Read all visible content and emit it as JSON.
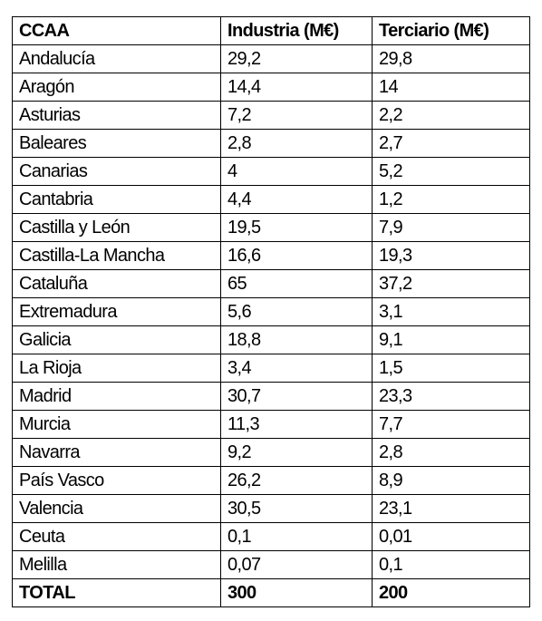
{
  "table": {
    "header": [
      "CCAA",
      "Industria (M€)",
      "Terciario (M€)"
    ],
    "rows": [
      [
        "Andalucía",
        "29,2",
        "29,8"
      ],
      [
        "Aragón",
        "14,4",
        "14"
      ],
      [
        "Asturias",
        "7,2",
        "2,2"
      ],
      [
        "Baleares",
        "2,8",
        "2,7"
      ],
      [
        "Canarias",
        "4",
        "5,2"
      ],
      [
        "Cantabria",
        "4,4",
        "1,2"
      ],
      [
        "Castilla y León",
        "19,5",
        "7,9"
      ],
      [
        "Castilla-La Mancha",
        "16,6",
        "19,3"
      ],
      [
        "Cataluña",
        "65",
        "37,2"
      ],
      [
        "Extremadura",
        "5,6",
        "3,1"
      ],
      [
        "Galicia",
        "18,8",
        "9,1"
      ],
      [
        "La Rioja",
        "3,4",
        "1,5"
      ],
      [
        "Madrid",
        "30,7",
        "23,3"
      ],
      [
        "Murcia",
        "11,3",
        "7,7"
      ],
      [
        "Navarra",
        "9,2",
        "2,8"
      ],
      [
        "País Vasco",
        "26,2",
        "8,9"
      ],
      [
        "Valencia",
        "30,5",
        "23,1"
      ],
      [
        "Ceuta",
        "0,1",
        "0,01"
      ],
      [
        "Melilla",
        "0,07",
        "0,1"
      ]
    ],
    "total": [
      "TOTAL",
      "300",
      "200"
    ]
  }
}
